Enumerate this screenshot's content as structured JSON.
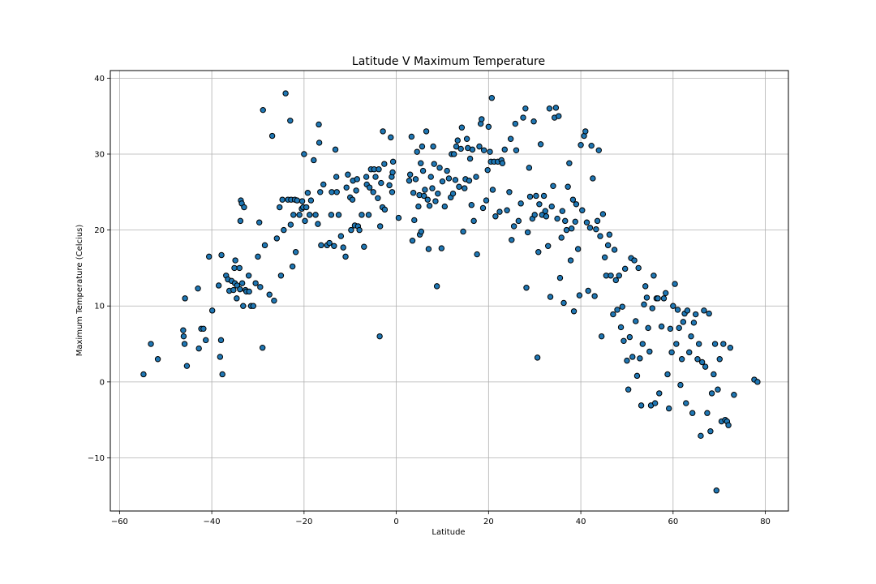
{
  "chart_data": {
    "type": "scatter",
    "title": "Latitude V Maximum Temperature",
    "xlabel": "Latitude",
    "ylabel": "Maximum Temperature (Celcius)",
    "xlim": [
      -62,
      85
    ],
    "ylim": [
      -17,
      41
    ],
    "xticks": [
      -60,
      -40,
      -20,
      0,
      20,
      40,
      60,
      80
    ],
    "yticks": [
      -10,
      0,
      10,
      20,
      30,
      40
    ],
    "xtick_labels": [
      "−60",
      "−40",
      "−20",
      "0",
      "20",
      "40",
      "60",
      "80"
    ],
    "ytick_labels": [
      "−10",
      "0",
      "10",
      "20",
      "30",
      "40"
    ],
    "grid": true,
    "marker_color": "#1f77b4",
    "marker_edge": "#000000",
    "points": [
      [
        -54.8,
        1.0
      ],
      [
        -53.2,
        5.0
      ],
      [
        -51.7,
        3.0
      ],
      [
        -46.2,
        6.8
      ],
      [
        -46.1,
        6.0
      ],
      [
        -45.9,
        5.0
      ],
      [
        -45.8,
        11.0
      ],
      [
        -45.4,
        2.1
      ],
      [
        -43.0,
        12.3
      ],
      [
        -42.8,
        4.4
      ],
      [
        -42.3,
        7.0
      ],
      [
        -41.8,
        7.0
      ],
      [
        -41.3,
        5.5
      ],
      [
        -40.6,
        16.5
      ],
      [
        -39.9,
        9.4
      ],
      [
        -38.5,
        12.7
      ],
      [
        -38.2,
        3.3
      ],
      [
        -38.0,
        5.5
      ],
      [
        -37.9,
        16.7
      ],
      [
        -37.7,
        1.0
      ],
      [
        -36.9,
        14.0
      ],
      [
        -36.5,
        13.5
      ],
      [
        -36.2,
        12.0
      ],
      [
        -35.7,
        13.3
      ],
      [
        -35.3,
        12.1
      ],
      [
        -35.1,
        15.0
      ],
      [
        -35.0,
        13.0
      ],
      [
        -34.9,
        16.0
      ],
      [
        -34.6,
        11.0
      ],
      [
        -34.5,
        12.7
      ],
      [
        -34.0,
        15.0
      ],
      [
        -33.9,
        12.2
      ],
      [
        -33.8,
        21.2
      ],
      [
        -33.7,
        23.9
      ],
      [
        -33.5,
        23.5
      ],
      [
        -33.4,
        13.0
      ],
      [
        -33.2,
        10.0
      ],
      [
        -33.0,
        23.0
      ],
      [
        -32.7,
        12.1
      ],
      [
        -32.5,
        11.9
      ],
      [
        -32.0,
        14.0
      ],
      [
        -31.9,
        11.9
      ],
      [
        -31.5,
        10.0
      ],
      [
        -31.0,
        10.0
      ],
      [
        -30.5,
        13.0
      ],
      [
        -30.0,
        16.5
      ],
      [
        -29.7,
        21.0
      ],
      [
        -29.5,
        12.5
      ],
      [
        -29.0,
        4.5
      ],
      [
        -28.9,
        35.8
      ],
      [
        -28.5,
        18.0
      ],
      [
        -27.5,
        11.5
      ],
      [
        -26.9,
        32.4
      ],
      [
        -26.5,
        10.7
      ],
      [
        -25.9,
        18.9
      ],
      [
        -25.3,
        23.0
      ],
      [
        -25.0,
        14.0
      ],
      [
        -24.7,
        24.0
      ],
      [
        -24.4,
        20.0
      ],
      [
        -24.0,
        38.0
      ],
      [
        -23.5,
        24.0
      ],
      [
        -23.0,
        34.4
      ],
      [
        -22.9,
        20.7
      ],
      [
        -22.8,
        24.0
      ],
      [
        -22.5,
        15.2
      ],
      [
        -22.3,
        22.0
      ],
      [
        -22.0,
        24.0
      ],
      [
        -21.8,
        17.1
      ],
      [
        -21.5,
        23.9
      ],
      [
        -21.0,
        22.0
      ],
      [
        -20.5,
        22.8
      ],
      [
        -20.4,
        23.8
      ],
      [
        -20.2,
        23.0
      ],
      [
        -20.0,
        30.0
      ],
      [
        -19.8,
        21.2
      ],
      [
        -19.5,
        23.0
      ],
      [
        -19.2,
        24.9
      ],
      [
        -18.8,
        22.0
      ],
      [
        -18.5,
        23.9
      ],
      [
        -17.9,
        29.2
      ],
      [
        -17.5,
        22.0
      ],
      [
        -17.0,
        20.8
      ],
      [
        -16.8,
        33.9
      ],
      [
        -16.7,
        31.5
      ],
      [
        -16.5,
        25.0
      ],
      [
        -16.3,
        18.0
      ],
      [
        -15.8,
        26.0
      ],
      [
        -15.0,
        18.0
      ],
      [
        -14.5,
        18.3
      ],
      [
        -14.1,
        22.0
      ],
      [
        -14.0,
        25.0
      ],
      [
        -13.5,
        17.9
      ],
      [
        -13.2,
        30.6
      ],
      [
        -13.0,
        27.0
      ],
      [
        -12.9,
        25.0
      ],
      [
        -12.5,
        22.0
      ],
      [
        -12.0,
        19.2
      ],
      [
        -11.5,
        17.7
      ],
      [
        -11.0,
        16.5
      ],
      [
        -10.8,
        25.6
      ],
      [
        -10.5,
        27.3
      ],
      [
        -10.0,
        24.3
      ],
      [
        -9.8,
        20.0
      ],
      [
        -9.5,
        24.0
      ],
      [
        -9.4,
        26.5
      ],
      [
        -9.0,
        20.6
      ],
      [
        -8.7,
        25.2
      ],
      [
        -8.5,
        26.7
      ],
      [
        -8.3,
        20.5
      ],
      [
        -8.0,
        20.0
      ],
      [
        -7.5,
        22.0
      ],
      [
        -7.0,
        17.8
      ],
      [
        -6.5,
        27.0
      ],
      [
        -6.4,
        26.0
      ],
      [
        -6.0,
        22.0
      ],
      [
        -5.8,
        25.6
      ],
      [
        -5.5,
        28.0
      ],
      [
        -5.0,
        25.0
      ],
      [
        -4.8,
        28.0
      ],
      [
        -4.5,
        27.0
      ],
      [
        -4.0,
        24.2
      ],
      [
        -3.8,
        28.0
      ],
      [
        -3.6,
        6.0
      ],
      [
        -3.5,
        20.5
      ],
      [
        -3.3,
        26.2
      ],
      [
        -3.0,
        23.0
      ],
      [
        -2.9,
        33.0
      ],
      [
        -2.6,
        28.7
      ],
      [
        -2.5,
        22.7
      ],
      [
        -1.5,
        25.9
      ],
      [
        -1.2,
        32.2
      ],
      [
        -1.0,
        27.0
      ],
      [
        -0.9,
        25.0
      ],
      [
        -0.8,
        27.6
      ],
      [
        -0.7,
        29.0
      ],
      [
        0.5,
        21.6
      ],
      [
        2.8,
        26.5
      ],
      [
        3.0,
        27.3
      ],
      [
        3.3,
        32.3
      ],
      [
        3.5,
        18.6
      ],
      [
        3.7,
        24.9
      ],
      [
        3.9,
        21.3
      ],
      [
        4.2,
        26.7
      ],
      [
        4.5,
        30.3
      ],
      [
        4.8,
        23.1
      ],
      [
        5.0,
        24.6
      ],
      [
        5.1,
        19.4
      ],
      [
        5.3,
        28.8
      ],
      [
        5.4,
        19.8
      ],
      [
        5.6,
        31.0
      ],
      [
        5.8,
        27.8
      ],
      [
        6.0,
        24.5
      ],
      [
        6.2,
        25.3
      ],
      [
        6.5,
        33.0
      ],
      [
        6.8,
        24.0
      ],
      [
        7.0,
        17.5
      ],
      [
        7.2,
        23.2
      ],
      [
        7.5,
        27.0
      ],
      [
        7.8,
        25.5
      ],
      [
        8.0,
        31.0
      ],
      [
        8.2,
        28.7
      ],
      [
        8.5,
        23.8
      ],
      [
        8.8,
        12.6
      ],
      [
        9.0,
        24.8
      ],
      [
        9.4,
        28.2
      ],
      [
        9.8,
        17.6
      ],
      [
        10.0,
        26.4
      ],
      [
        10.5,
        23.1
      ],
      [
        11.0,
        27.8
      ],
      [
        11.4,
        26.8
      ],
      [
        11.8,
        24.3
      ],
      [
        12.0,
        30.0
      ],
      [
        12.3,
        24.8
      ],
      [
        12.5,
        30.0
      ],
      [
        12.8,
        26.6
      ],
      [
        13.0,
        31.0
      ],
      [
        13.3,
        31.8
      ],
      [
        13.6,
        25.7
      ],
      [
        14.0,
        30.7
      ],
      [
        14.2,
        33.5
      ],
      [
        14.5,
        19.8
      ],
      [
        14.8,
        25.5
      ],
      [
        15.0,
        26.7
      ],
      [
        15.3,
        32.0
      ],
      [
        15.5,
        30.8
      ],
      [
        15.8,
        26.5
      ],
      [
        16.0,
        29.4
      ],
      [
        16.3,
        23.3
      ],
      [
        16.5,
        30.6
      ],
      [
        16.8,
        21.2
      ],
      [
        17.3,
        27.0
      ],
      [
        17.5,
        16.8
      ],
      [
        18.0,
        31.0
      ],
      [
        18.3,
        34.0
      ],
      [
        18.5,
        34.6
      ],
      [
        18.8,
        22.9
      ],
      [
        19.0,
        30.5
      ],
      [
        19.5,
        23.9
      ],
      [
        19.8,
        27.9
      ],
      [
        20.0,
        33.6
      ],
      [
        20.3,
        30.3
      ],
      [
        20.5,
        29.0
      ],
      [
        20.7,
        37.4
      ],
      [
        20.9,
        25.3
      ],
      [
        21.2,
        29.0
      ],
      [
        21.5,
        21.8
      ],
      [
        22.0,
        29.0
      ],
      [
        22.4,
        22.4
      ],
      [
        22.8,
        29.2
      ],
      [
        23.0,
        28.8
      ],
      [
        23.5,
        30.6
      ],
      [
        24.0,
        22.6
      ],
      [
        24.5,
        25.0
      ],
      [
        24.8,
        32.0
      ],
      [
        25.0,
        18.7
      ],
      [
        25.5,
        20.5
      ],
      [
        25.8,
        34.0
      ],
      [
        26.0,
        30.5
      ],
      [
        26.5,
        21.2
      ],
      [
        27.0,
        23.5
      ],
      [
        27.5,
        34.8
      ],
      [
        28.0,
        36.0
      ],
      [
        28.2,
        12.4
      ],
      [
        28.5,
        19.7
      ],
      [
        28.8,
        28.2
      ],
      [
        29.0,
        24.4
      ],
      [
        29.5,
        21.5
      ],
      [
        29.8,
        34.3
      ],
      [
        30.0,
        22.0
      ],
      [
        30.3,
        24.5
      ],
      [
        30.6,
        3.2
      ],
      [
        30.8,
        17.1
      ],
      [
        31.0,
        23.4
      ],
      [
        31.3,
        31.3
      ],
      [
        31.6,
        22.0
      ],
      [
        32.0,
        24.5
      ],
      [
        32.3,
        22.5
      ],
      [
        32.5,
        21.8
      ],
      [
        32.9,
        17.9
      ],
      [
        33.2,
        36.0
      ],
      [
        33.4,
        11.2
      ],
      [
        33.7,
        23.1
      ],
      [
        34.0,
        25.8
      ],
      [
        34.3,
        34.8
      ],
      [
        34.6,
        36.1
      ],
      [
        34.9,
        21.5
      ],
      [
        35.2,
        35.0
      ],
      [
        35.5,
        13.7
      ],
      [
        35.8,
        19.0
      ],
      [
        36.0,
        22.5
      ],
      [
        36.3,
        10.4
      ],
      [
        36.6,
        21.2
      ],
      [
        36.9,
        20.0
      ],
      [
        37.2,
        25.7
      ],
      [
        37.5,
        28.8
      ],
      [
        37.8,
        16.0
      ],
      [
        38.0,
        20.2
      ],
      [
        38.3,
        24.0
      ],
      [
        38.5,
        9.3
      ],
      [
        38.8,
        21.1
      ],
      [
        39.0,
        23.4
      ],
      [
        39.4,
        17.5
      ],
      [
        39.7,
        11.4
      ],
      [
        40.0,
        31.2
      ],
      [
        40.3,
        22.6
      ],
      [
        40.7,
        32.4
      ],
      [
        41.0,
        33.0
      ],
      [
        41.3,
        21.0
      ],
      [
        41.6,
        12.0
      ],
      [
        42.0,
        20.3
      ],
      [
        42.3,
        31.1
      ],
      [
        42.6,
        26.8
      ],
      [
        43.0,
        11.3
      ],
      [
        43.3,
        20.1
      ],
      [
        43.6,
        21.2
      ],
      [
        43.9,
        30.5
      ],
      [
        44.2,
        19.2
      ],
      [
        44.5,
        6.0
      ],
      [
        44.8,
        22.1
      ],
      [
        45.2,
        16.4
      ],
      [
        45.5,
        14.0
      ],
      [
        45.9,
        18.0
      ],
      [
        46.2,
        19.4
      ],
      [
        46.5,
        14.0
      ],
      [
        47.0,
        8.9
      ],
      [
        47.3,
        17.4
      ],
      [
        47.6,
        13.4
      ],
      [
        47.9,
        9.5
      ],
      [
        48.3,
        14.0
      ],
      [
        48.7,
        7.2
      ],
      [
        49.0,
        9.9
      ],
      [
        49.3,
        5.4
      ],
      [
        49.6,
        14.9
      ],
      [
        50.0,
        2.8
      ],
      [
        50.3,
        -1.0
      ],
      [
        50.6,
        5.9
      ],
      [
        50.9,
        16.3
      ],
      [
        51.2,
        3.3
      ],
      [
        51.6,
        16.0
      ],
      [
        51.9,
        8.0
      ],
      [
        52.2,
        0.8
      ],
      [
        52.5,
        15.0
      ],
      [
        52.8,
        3.1
      ],
      [
        53.1,
        -3.1
      ],
      [
        53.4,
        5.0
      ],
      [
        53.7,
        10.2
      ],
      [
        54.0,
        12.6
      ],
      [
        54.3,
        11.1
      ],
      [
        54.6,
        7.1
      ],
      [
        54.9,
        4.0
      ],
      [
        55.2,
        -3.1
      ],
      [
        55.5,
        9.7
      ],
      [
        55.8,
        14.0
      ],
      [
        56.1,
        -2.8
      ],
      [
        56.4,
        11.0
      ],
      [
        56.7,
        11.0
      ],
      [
        57.0,
        -1.5
      ],
      [
        57.5,
        7.3
      ],
      [
        58.0,
        11.0
      ],
      [
        58.4,
        11.7
      ],
      [
        58.8,
        1.0
      ],
      [
        59.1,
        -3.5
      ],
      [
        59.4,
        7.0
      ],
      [
        59.7,
        3.9
      ],
      [
        60.0,
        10.0
      ],
      [
        60.4,
        12.9
      ],
      [
        60.7,
        5.0
      ],
      [
        61.0,
        9.5
      ],
      [
        61.3,
        7.1
      ],
      [
        61.6,
        -0.4
      ],
      [
        61.9,
        3.0
      ],
      [
        62.2,
        7.9
      ],
      [
        62.5,
        9.0
      ],
      [
        62.8,
        -2.8
      ],
      [
        63.1,
        9.4
      ],
      [
        63.5,
        3.9
      ],
      [
        63.9,
        6.0
      ],
      [
        64.2,
        -4.1
      ],
      [
        64.5,
        7.8
      ],
      [
        64.9,
        8.9
      ],
      [
        65.3,
        3.0
      ],
      [
        65.6,
        5.0
      ],
      [
        66.0,
        -7.1
      ],
      [
        66.3,
        2.6
      ],
      [
        66.7,
        9.4
      ],
      [
        67.0,
        2.0
      ],
      [
        67.4,
        -4.1
      ],
      [
        67.8,
        9.0
      ],
      [
        68.1,
        -6.5
      ],
      [
        68.4,
        -1.5
      ],
      [
        68.8,
        1.0
      ],
      [
        69.1,
        5.0
      ],
      [
        69.4,
        -14.3
      ],
      [
        69.7,
        -1.0
      ],
      [
        70.1,
        3.0
      ],
      [
        70.5,
        -5.2
      ],
      [
        70.9,
        5.0
      ],
      [
        71.3,
        -5.0
      ],
      [
        71.7,
        -5.2
      ],
      [
        72.0,
        -5.7
      ],
      [
        72.4,
        4.5
      ],
      [
        73.2,
        -1.7
      ],
      [
        77.6,
        0.3
      ],
      [
        78.3,
        0.0
      ]
    ]
  }
}
